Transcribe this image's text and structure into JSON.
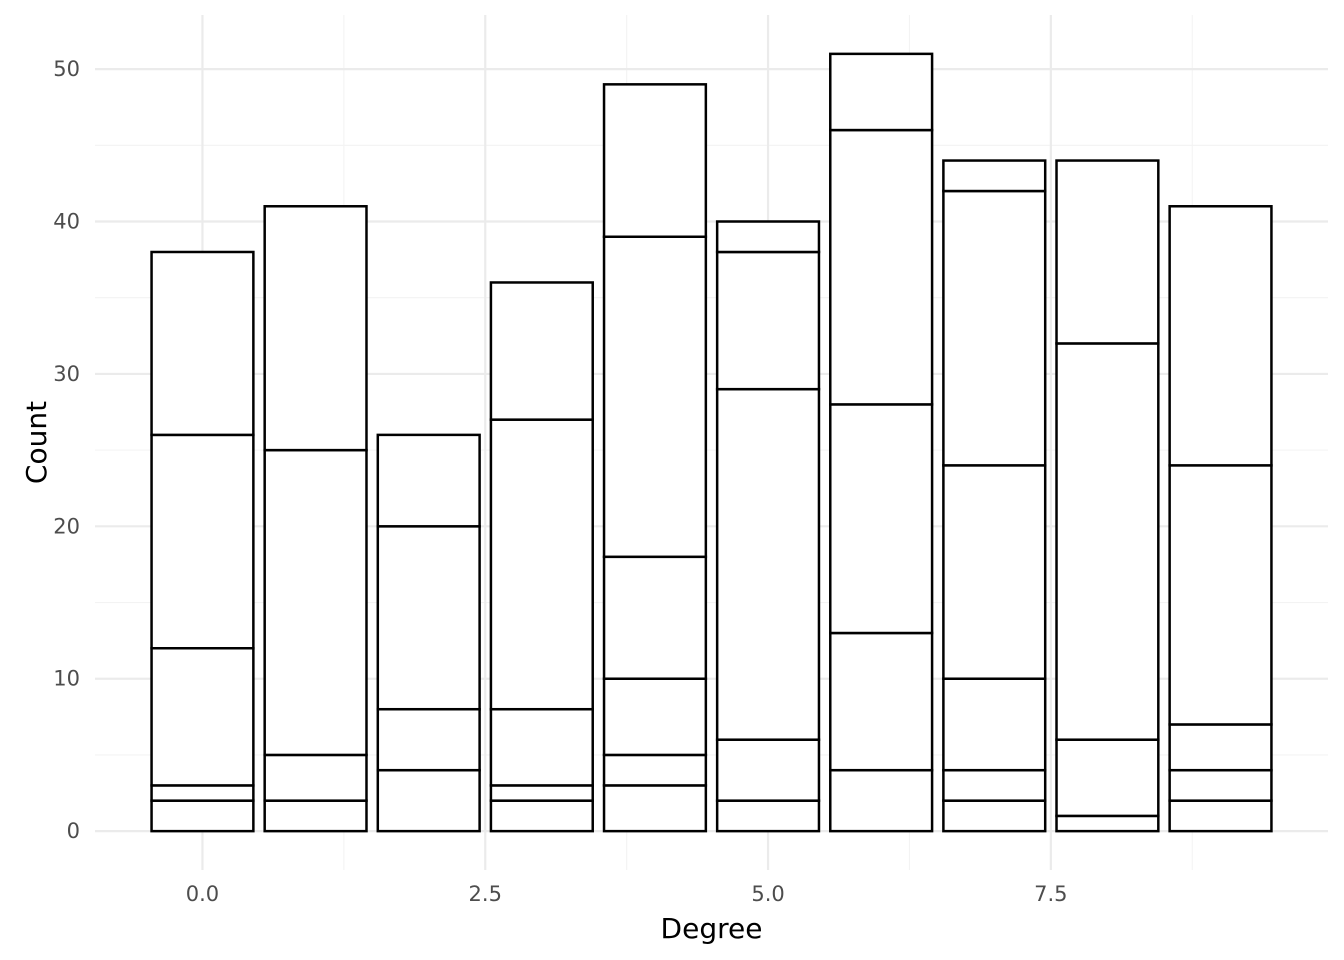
{
  "chart_data": {
    "type": "bar",
    "stacked": true,
    "title": "",
    "xlabel": "Degree",
    "ylabel": "Count",
    "x": [
      0,
      1,
      2,
      3,
      4,
      5,
      6,
      7,
      8,
      9
    ],
    "stack_boundaries": [
      [
        0,
        2,
        3,
        12,
        26,
        38
      ],
      [
        0,
        2,
        5,
        25,
        41
      ],
      [
        0,
        4,
        8,
        20,
        26
      ],
      [
        0,
        2,
        3,
        8,
        27,
        36
      ],
      [
        0,
        3,
        5,
        10,
        18,
        39,
        49
      ],
      [
        0,
        2,
        6,
        29,
        38,
        40
      ],
      [
        0,
        4,
        13,
        28,
        46,
        51
      ],
      [
        0,
        2,
        4,
        10,
        24,
        42,
        44
      ],
      [
        0,
        1,
        6,
        32,
        44
      ],
      [
        0,
        2,
        4,
        7,
        24,
        41
      ]
    ],
    "totals": [
      38,
      41,
      26,
      36,
      49,
      40,
      51,
      44,
      44,
      41
    ],
    "xlim": [
      -0.95,
      9.95
    ],
    "ylim": [
      -2.55,
      53.55
    ],
    "x_ticks": [
      0,
      2.5,
      5,
      7.5
    ],
    "x_tick_labels": [
      "0.0",
      "2.5",
      "5.0",
      "7.5"
    ],
    "y_ticks": [
      0,
      10,
      20,
      30,
      40,
      50
    ],
    "y_tick_labels": [
      "0",
      "10",
      "20",
      "30",
      "40",
      "50"
    ],
    "bar_width": 0.9,
    "grid": true,
    "legend": "none",
    "colors": {
      "fill": "#ffffff",
      "outline": "#000000",
      "grid_major": "#ebebeb",
      "grid_minor": "#f3f3f3"
    }
  }
}
